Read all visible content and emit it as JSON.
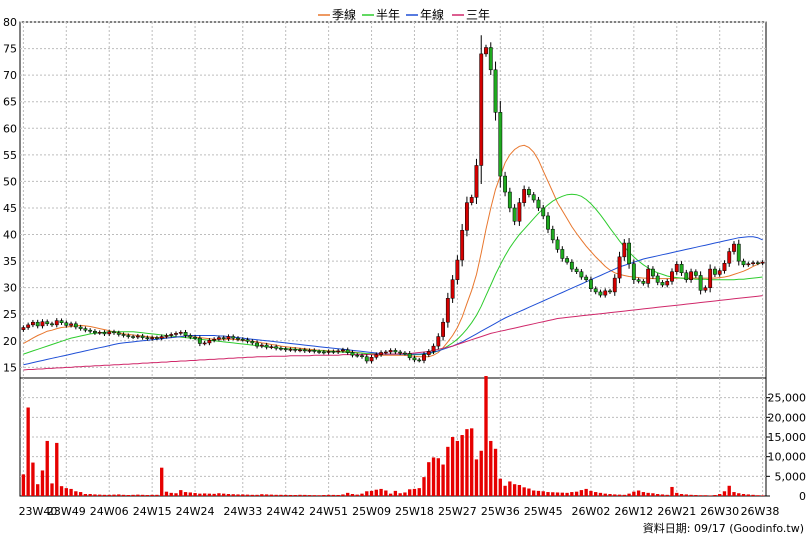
{
  "chart_data": {
    "type": "candlestick-with-volume",
    "legend": [
      {
        "label": "季線",
        "color": "#e8772e"
      },
      {
        "label": "半年",
        "color": "#2ecc2e"
      },
      {
        "label": "年線",
        "color": "#1f4fd6"
      },
      {
        "label": "三年",
        "color": "#d0286a"
      }
    ],
    "price_axis": {
      "ylim": [
        13,
        80
      ],
      "ticks": [
        15,
        20,
        25,
        30,
        35,
        40,
        45,
        50,
        55,
        60,
        65,
        70,
        75,
        80
      ]
    },
    "volume_axis": {
      "ylim": [
        0,
        30000
      ],
      "ticks": [
        "0",
        "5,000",
        "10,000",
        "15,000",
        "20,000",
        "25,000"
      ]
    },
    "x_tick_labels": [
      "23W40",
      "23W49",
      "24W06",
      "24W15",
      "24W24",
      "24W33",
      "24W42",
      "24W51",
      "25W09",
      "25W18",
      "25W27",
      "25W36",
      "25W45",
      "26W02",
      "26W12",
      "26W21",
      "26W30",
      "26W38"
    ],
    "week_count": 156,
    "close": [
      22.5,
      23.0,
      23.5,
      22.8,
      23.6,
      23.2,
      23.0,
      23.8,
      23.4,
      22.9,
      23.2,
      22.6,
      22.3,
      22.0,
      21.8,
      21.5,
      21.6,
      21.3,
      21.7,
      21.5,
      21.2,
      21.0,
      20.8,
      20.7,
      20.9,
      20.6,
      20.4,
      20.6,
      20.5,
      20.8,
      21.0,
      21.2,
      21.4,
      21.6,
      21.0,
      20.7,
      20.5,
      19.5,
      19.6,
      20.1,
      20.3,
      20.6,
      20.4,
      20.8,
      20.5,
      20.3,
      20.2,
      19.9,
      19.6,
      19.0,
      19.2,
      18.8,
      18.9,
      18.6,
      18.5,
      18.3,
      18.4,
      18.2,
      18.3,
      18.1,
      18.2,
      18.0,
      17.9,
      17.8,
      18.0,
      17.9,
      18.1,
      18.3,
      17.8,
      17.3,
      17.2,
      17.0,
      16.2,
      16.9,
      17.4,
      17.8,
      17.9,
      18.2,
      17.9,
      17.7,
      17.6,
      16.8,
      16.4,
      16.3,
      17.4,
      18.0,
      19.0,
      20.8,
      23.5,
      28.0,
      31.5,
      35.2,
      40.8,
      46.0,
      47.0,
      53.0,
      74.0,
      75.2,
      71.0,
      63.0,
      51.0,
      48.0,
      45.0,
      42.5,
      46.0,
      48.5,
      47.5,
      46.5,
      45.0,
      43.5,
      41.0,
      39.0,
      37.2,
      35.5,
      34.8,
      33.5,
      33.0,
      32.0,
      31.5,
      29.8,
      29.2,
      28.6,
      29.4,
      29.2,
      31.8,
      35.8,
      38.4,
      34.5,
      31.5,
      31.2,
      30.8,
      33.5,
      32.2,
      31.0,
      30.5,
      31.2,
      33.0,
      34.4,
      32.8,
      31.5,
      33.0,
      32.3,
      29.5,
      30.0,
      33.5,
      32.5,
      33.2,
      34.6,
      36.8,
      38.2,
      35.0,
      34.3,
      34.5,
      34.7,
      34.6,
      34.8
    ],
    "volume": [
      5500,
      22500,
      8500,
      3000,
      6500,
      14000,
      3200,
      13500,
      2500,
      2000,
      1800,
      1200,
      1000,
      500,
      500,
      400,
      350,
      300,
      300,
      350,
      400,
      300,
      250,
      300,
      350,
      300,
      250,
      300,
      300,
      7200,
      1100,
      800,
      700,
      1500,
      1000,
      900,
      750,
      600,
      650,
      600,
      550,
      700,
      600,
      500,
      450,
      400,
      400,
      350,
      300,
      300,
      450,
      400,
      350,
      300,
      300,
      280,
      260,
      250,
      300,
      280,
      240,
      220,
      200,
      250,
      300,
      280,
      260,
      400,
      800,
      500,
      350,
      600,
      1200,
      1300,
      1600,
      1800,
      1400,
      600,
      1300,
      700,
      900,
      1700,
      1800,
      2000,
      4800,
      8600,
      9800,
      9600,
      8000,
      12500,
      15000,
      14000,
      15500,
      17000,
      17200,
      9300,
      11500,
      30500,
      14000,
      12000,
      4400,
      2600,
      3700,
      3000,
      2800,
      2200,
      1900,
      1400,
      1300,
      1200,
      1000,
      950,
      900,
      850,
      800,
      1000,
      1100,
      1500,
      1800,
      1300,
      1000,
      800,
      600,
      500,
      400,
      350,
      300,
      600,
      1100,
      1400,
      1000,
      800,
      700,
      500,
      400,
      300,
      2300,
      800,
      500,
      400,
      300,
      250,
      200,
      200,
      150,
      250,
      500,
      1200,
      2600,
      1000,
      700,
      500,
      400,
      300,
      200,
      150
    ],
    "moving_averages": {
      "q": [
        19.5,
        20.0,
        20.5,
        21.0,
        21.4,
        21.8,
        22.0,
        22.3,
        22.5,
        22.6,
        22.7,
        22.8,
        22.9,
        22.8,
        22.7,
        22.5,
        22.3,
        22.1,
        21.9,
        21.7,
        21.5,
        21.3,
        21.2,
        21.1,
        21.0,
        20.9,
        20.8,
        20.7,
        20.6,
        20.6,
        20.6,
        20.6,
        20.7,
        20.8,
        20.9,
        20.8,
        20.7,
        20.6,
        20.5,
        20.4,
        20.3,
        20.3,
        20.3,
        20.3,
        20.3,
        20.2,
        20.1,
        20.0,
        19.9,
        19.8,
        19.6,
        19.5,
        19.3,
        19.2,
        19.0,
        18.9,
        18.8,
        18.7,
        18.6,
        18.5,
        18.4,
        18.3,
        18.2,
        18.2,
        18.1,
        18.1,
        18.0,
        18.0,
        18.0,
        17.9,
        17.8,
        17.7,
        17.5,
        17.4,
        17.3,
        17.3,
        17.3,
        17.3,
        17.3,
        17.3,
        17.3,
        17.2,
        17.1,
        17.0,
        17.0,
        17.0,
        17.3,
        17.8,
        18.7,
        19.8,
        21.0,
        22.5,
        24.5,
        27.0,
        29.5,
        32.5,
        36.5,
        41.0,
        45.0,
        48.5,
        51.0,
        53.5,
        55.0,
        56.0,
        56.6,
        56.8,
        56.4,
        55.5,
        54.0,
        52.0,
        50.0,
        48.0,
        46.0,
        44.5,
        43.0,
        41.5,
        40.2,
        39.0,
        37.8,
        36.8,
        35.8,
        34.9,
        34.0,
        33.3,
        32.8,
        32.5,
        32.3,
        32.1,
        32.0,
        31.9,
        31.8,
        31.8,
        31.7,
        31.7,
        31.7,
        31.7,
        31.7,
        31.8,
        31.8,
        31.8,
        31.8,
        31.8,
        31.8,
        31.8,
        31.8,
        31.8,
        31.9,
        32.0,
        32.2,
        32.5,
        32.8,
        33.1,
        33.5,
        34.0,
        34.4,
        34.8
      ],
      "h": [
        17.5,
        17.8,
        18.1,
        18.4,
        18.7,
        19.0,
        19.3,
        19.6,
        19.9,
        20.2,
        20.5,
        20.7,
        20.9,
        21.1,
        21.3,
        21.4,
        21.5,
        21.6,
        21.7,
        21.7,
        21.7,
        21.7,
        21.7,
        21.7,
        21.6,
        21.5,
        21.4,
        21.3,
        21.2,
        21.1,
        21.0,
        20.9,
        20.8,
        20.7,
        20.6,
        20.5,
        20.4,
        20.3,
        20.2,
        20.1,
        20.0,
        19.9,
        19.8,
        19.7,
        19.6,
        19.5,
        19.4,
        19.3,
        19.2,
        19.1,
        19.0,
        18.9,
        18.8,
        18.7,
        18.6,
        18.5,
        18.5,
        18.4,
        18.3,
        18.3,
        18.2,
        18.2,
        18.1,
        18.1,
        18.0,
        18.0,
        17.9,
        17.9,
        17.8,
        17.8,
        17.7,
        17.7,
        17.6,
        17.6,
        17.6,
        17.5,
        17.5,
        17.5,
        17.5,
        17.5,
        17.5,
        17.4,
        17.4,
        17.4,
        17.5,
        17.6,
        17.8,
        18.1,
        18.5,
        19.0,
        19.6,
        20.3,
        21.2,
        22.2,
        23.4,
        24.8,
        26.5,
        28.5,
        30.5,
        32.5,
        34.3,
        36.0,
        37.5,
        38.8,
        40.0,
        41.0,
        42.0,
        43.0,
        44.0,
        44.8,
        45.6,
        46.3,
        46.8,
        47.2,
        47.5,
        47.6,
        47.5,
        47.2,
        46.6,
        45.8,
        44.8,
        43.7,
        42.5,
        41.2,
        40.0,
        38.8,
        37.7,
        36.7,
        35.8,
        35.0,
        34.3,
        33.7,
        33.2,
        32.8,
        32.5,
        32.2,
        32.0,
        31.9,
        31.8,
        31.7,
        31.7,
        31.6,
        31.6,
        31.6,
        31.5,
        31.5,
        31.5,
        31.5,
        31.5,
        31.5,
        31.6,
        31.6,
        31.7,
        31.8,
        31.9,
        32.0
      ],
      "y": [
        15.5,
        15.7,
        15.9,
        16.1,
        16.3,
        16.5,
        16.7,
        16.9,
        17.1,
        17.3,
        17.5,
        17.7,
        17.9,
        18.1,
        18.3,
        18.5,
        18.7,
        18.9,
        19.1,
        19.3,
        19.5,
        19.6,
        19.7,
        19.8,
        19.9,
        20.0,
        20.1,
        20.2,
        20.3,
        20.4,
        20.5,
        20.6,
        20.7,
        20.8,
        20.9,
        21.0,
        21.0,
        21.0,
        21.0,
        21.0,
        21.0,
        20.9,
        20.9,
        20.8,
        20.7,
        20.6,
        20.5,
        20.4,
        20.3,
        20.2,
        20.1,
        20.0,
        19.9,
        19.8,
        19.7,
        19.6,
        19.5,
        19.4,
        19.3,
        19.2,
        19.1,
        19.0,
        18.9,
        18.8,
        18.7,
        18.6,
        18.5,
        18.4,
        18.3,
        18.2,
        18.1,
        18.0,
        17.9,
        17.8,
        17.7,
        17.6,
        17.5,
        17.5,
        17.5,
        17.5,
        17.5,
        17.5,
        17.5,
        17.5,
        17.6,
        17.7,
        17.9,
        18.1,
        18.4,
        18.7,
        19.0,
        19.4,
        19.8,
        20.3,
        20.8,
        21.3,
        21.8,
        22.3,
        22.8,
        23.3,
        23.8,
        24.3,
        24.7,
        25.1,
        25.5,
        25.9,
        26.3,
        26.7,
        27.1,
        27.5,
        27.9,
        28.3,
        28.7,
        29.1,
        29.5,
        29.9,
        30.3,
        30.7,
        31.1,
        31.5,
        31.9,
        32.3,
        32.7,
        33.1,
        33.5,
        33.9,
        34.2,
        34.5,
        34.8,
        35.1,
        35.4,
        35.6,
        35.8,
        36.0,
        36.2,
        36.4,
        36.6,
        36.8,
        37.0,
        37.2,
        37.4,
        37.6,
        37.8,
        38.0,
        38.2,
        38.4,
        38.6,
        38.8,
        39.0,
        39.2,
        39.4,
        39.5,
        39.6,
        39.6,
        39.4,
        39.0
      ],
      "t": [
        14.5,
        14.6,
        14.6,
        14.7,
        14.7,
        14.8,
        14.8,
        14.9,
        14.9,
        15.0,
        15.0,
        15.1,
        15.1,
        15.2,
        15.2,
        15.3,
        15.3,
        15.4,
        15.4,
        15.5,
        15.5,
        15.6,
        15.6,
        15.7,
        15.7,
        15.8,
        15.8,
        15.9,
        15.9,
        16.0,
        16.0,
        16.1,
        16.1,
        16.2,
        16.2,
        16.3,
        16.3,
        16.4,
        16.4,
        16.5,
        16.5,
        16.6,
        16.6,
        16.7,
        16.7,
        16.8,
        16.8,
        16.9,
        16.9,
        17.0,
        17.0,
        17.0,
        17.1,
        17.1,
        17.1,
        17.1,
        17.2,
        17.2,
        17.2,
        17.2,
        17.2,
        17.3,
        17.3,
        17.3,
        17.3,
        17.3,
        17.3,
        17.4,
        17.4,
        17.4,
        17.4,
        17.4,
        17.4,
        17.5,
        17.5,
        17.5,
        17.5,
        17.5,
        17.5,
        17.6,
        17.6,
        17.6,
        17.7,
        17.8,
        17.9,
        18.0,
        18.2,
        18.4,
        18.6,
        18.8,
        19.0,
        19.3,
        19.6,
        19.9,
        20.2,
        20.5,
        20.8,
        21.1,
        21.4,
        21.6,
        21.8,
        22.0,
        22.2,
        22.4,
        22.6,
        22.8,
        23.0,
        23.2,
        23.4,
        23.6,
        23.8,
        24.0,
        24.2,
        24.3,
        24.4,
        24.5,
        24.6,
        24.7,
        24.8,
        24.9,
        25.0,
        25.1,
        25.2,
        25.3,
        25.4,
        25.5,
        25.6,
        25.7,
        25.8,
        25.9,
        26.0,
        26.1,
        26.2,
        26.3,
        26.4,
        26.5,
        26.6,
        26.7,
        26.8,
        26.9,
        27.0,
        27.1,
        27.2,
        27.3,
        27.4,
        27.5,
        27.6,
        27.7,
        27.8,
        27.9,
        28.0,
        28.1,
        28.2,
        28.3,
        28.4,
        28.5
      ]
    },
    "footer": "資料日期: 09/17  (Goodinfo.tw)"
  }
}
